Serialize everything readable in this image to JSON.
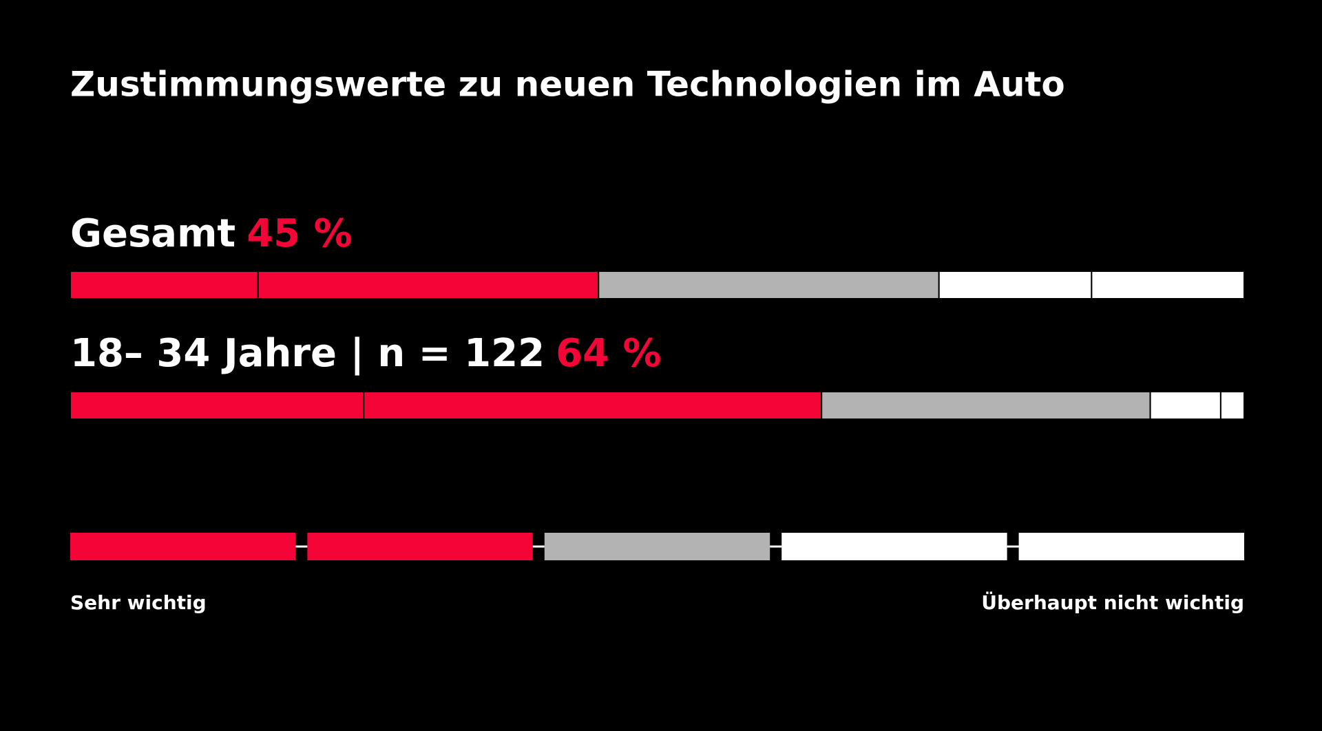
{
  "chart_data": {
    "type": "stacked-bar-horizontal",
    "title": "Zustimmungswerte zu neuen Technologien im Auto",
    "xlim": [
      0,
      100
    ],
    "segment_colors": [
      "#f50537",
      "#f50537",
      "#b3b3b3",
      "#ffffff",
      "#ffffff"
    ],
    "series": [
      {
        "name": "Gesamt",
        "value_label": "45 %",
        "values": [
          16,
          29,
          29,
          13,
          13
        ]
      },
      {
        "name": "18– 34 Jahre | n = 122",
        "value_label": "64 %",
        "values": [
          25,
          39,
          28,
          6,
          2
        ]
      }
    ],
    "legend": {
      "low_label": "Sehr wichtig",
      "high_label": "Überhaupt nicht wichtig"
    }
  }
}
